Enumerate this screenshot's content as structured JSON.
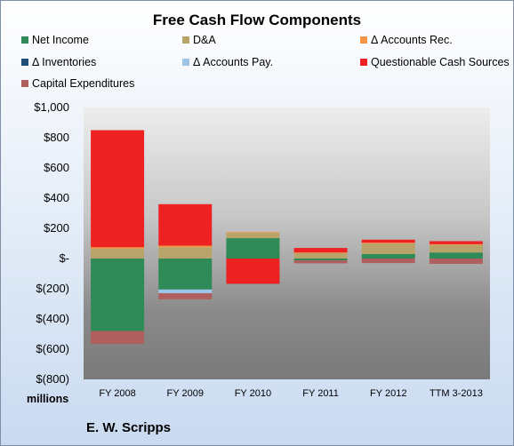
{
  "chart_data": {
    "type": "bar",
    "stacked": true,
    "title": "Free Cash Flow Components",
    "categories": [
      "FY 2008",
      "FY 2009",
      "FY 2010",
      "FY 2011",
      "FY 2012",
      "TTM 3-2013"
    ],
    "series": [
      {
        "name": "Net Income",
        "color": "#2e8b57",
        "values": [
          -480,
          -205,
          135,
          -12,
          30,
          40
        ]
      },
      {
        "name": "D&A",
        "color": "#b8a36a",
        "values": [
          65,
          75,
          35,
          35,
          70,
          50
        ]
      },
      {
        "name": "Δ Accounts Rec.",
        "color": "#f79646",
        "values": [
          10,
          10,
          5,
          5,
          5,
          5
        ]
      },
      {
        "name": "Δ Inventories",
        "color": "#1f4e79",
        "values": [
          0,
          0,
          0,
          0,
          0,
          0
        ]
      },
      {
        "name": "Δ Accounts Pay.",
        "color": "#9dc3e6",
        "values": [
          0,
          -25,
          0,
          0,
          0,
          0
        ]
      },
      {
        "name": "Questionable Cash Sources",
        "color": "#ee2222",
        "values": [
          775,
          275,
          -165,
          30,
          20,
          20
        ]
      },
      {
        "name": "Capital Expenditures",
        "color": "#b05f5f",
        "values": [
          -85,
          -40,
          -5,
          -20,
          -30,
          -35
        ]
      }
    ],
    "ylim": [
      -800,
      1000
    ],
    "yticks": [
      1000,
      800,
      600,
      400,
      200,
      0,
      -200,
      -400,
      -600,
      -800
    ],
    "ytick_labels": [
      "$1,000",
      "$800",
      "$600",
      "$400",
      "$200",
      "$-",
      "$(200)",
      "$(400)",
      "$(600)",
      "$(800)"
    ],
    "yunits": "millions",
    "subtitle": "E. W. Scripps",
    "grid": false,
    "legend_position": "top"
  }
}
